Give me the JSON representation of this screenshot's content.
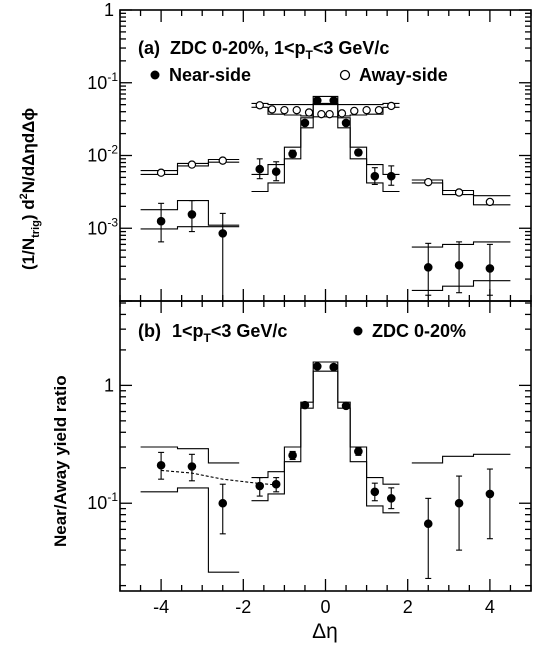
{
  "chart_data": [
    {
      "type": "scatter",
      "panel_label": "(a)",
      "title": "ZDC 0-20%, 1<p",
      "title_sub": "T",
      "title_tail": "<3 GeV/c",
      "ylabel_parts": {
        "a": "(1/N",
        "sub": "trig",
        "b": ") d",
        "sup": "2",
        "c": "N/dΔηdΔϕ"
      },
      "xlim": [
        -5.0,
        5.0
      ],
      "ylim": [
        0.0001,
        1
      ],
      "yscale": "log",
      "ytick_labels": {
        "1": "1",
        "0.1": "10",
        "0.01": "10",
        "0.001": "10"
      },
      "ytick_sup": {
        "0.1": "-1",
        "0.01": "-2",
        "0.001": "-3"
      },
      "series": [
        {
          "name": "Near-side",
          "marker": "filled-circle",
          "points": [
            {
              "x": -4.0,
              "y": 0.00125,
              "lo": 0.00065,
              "hi": 0.0022
            },
            {
              "x": -3.25,
              "y": 0.00155,
              "lo": 0.0009,
              "hi": 0.0024
            },
            {
              "x": -2.5,
              "y": 0.00085,
              "lo": 0.0001,
              "hi": 0.0016
            },
            {
              "x": -1.6,
              "y": 0.0065,
              "lo": 0.0048,
              "hi": 0.009
            },
            {
              "x": -1.2,
              "y": 0.006,
              "lo": 0.0045,
              "hi": 0.0082
            },
            {
              "x": -0.8,
              "y": 0.0105,
              "lo": 0.0095,
              "hi": 0.0118
            },
            {
              "x": -0.5,
              "y": 0.028,
              "lo": 0.026,
              "hi": 0.03
            },
            {
              "x": -0.2,
              "y": 0.057,
              "lo": 0.055,
              "hi": 0.059
            },
            {
              "x": 0.2,
              "y": 0.057,
              "lo": 0.055,
              "hi": 0.059
            },
            {
              "x": 0.5,
              "y": 0.028,
              "lo": 0.026,
              "hi": 0.03
            },
            {
              "x": 0.8,
              "y": 0.011,
              "lo": 0.01,
              "hi": 0.012
            },
            {
              "x": 1.2,
              "y": 0.0052,
              "lo": 0.004,
              "hi": 0.0068
            },
            {
              "x": 1.6,
              "y": 0.0052,
              "lo": 0.0039,
              "hi": 0.0072
            },
            {
              "x": 2.5,
              "y": 0.00029,
              "lo": 0.00012,
              "hi": 0.00062
            },
            {
              "x": 3.25,
              "y": 0.00031,
              "lo": 0.00013,
              "hi": 0.00065
            },
            {
              "x": 4.0,
              "y": 0.00028,
              "lo": 0.00012,
              "hi": 0.0006
            }
          ]
        },
        {
          "name": "Away-side",
          "marker": "open-circle",
          "points": [
            {
              "x": -4.0,
              "y": 0.0058
            },
            {
              "x": -3.25,
              "y": 0.0075
            },
            {
              "x": -2.5,
              "y": 0.0085
            },
            {
              "x": -1.6,
              "y": 0.049
            },
            {
              "x": -1.3,
              "y": 0.043
            },
            {
              "x": -1.0,
              "y": 0.042
            },
            {
              "x": -0.7,
              "y": 0.042
            },
            {
              "x": -0.4,
              "y": 0.039
            },
            {
              "x": -0.1,
              "y": 0.037
            },
            {
              "x": 0.1,
              "y": 0.037
            },
            {
              "x": 0.4,
              "y": 0.038
            },
            {
              "x": 0.7,
              "y": 0.041
            },
            {
              "x": 1.0,
              "y": 0.042
            },
            {
              "x": 1.3,
              "y": 0.042
            },
            {
              "x": 1.6,
              "y": 0.048
            },
            {
              "x": 2.5,
              "y": 0.0043
            },
            {
              "x": 3.25,
              "y": 0.0031
            },
            {
              "x": 4.0,
              "y": 0.0023
            }
          ]
        }
      ],
      "systematic_bands": [
        {
          "bins": [
            [
              -4.5,
              -3.6
            ],
            [
              -3.6,
              -2.85
            ],
            [
              -2.85,
              -2.1
            ]
          ],
          "values": [
            0.0062,
            0.0078,
            0.0088
          ]
        },
        {
          "bins": [
            [
              -4.5,
              -3.6
            ],
            [
              -3.6,
              -2.85
            ],
            [
              -2.85,
              -2.1
            ]
          ],
          "values": [
            0.0055,
            0.0072,
            0.0081
          ]
        },
        {
          "bins": [
            [
              -4.5,
              -3.6
            ],
            [
              -3.6,
              -2.85
            ],
            [
              -2.85,
              -2.1
            ]
          ],
          "values": [
            0.0018,
            0.0024,
            0.0011
          ]
        },
        {
          "bins": [
            [
              -4.5,
              -3.6
            ],
            [
              -3.6,
              -2.85
            ],
            [
              -2.85,
              -2.1
            ]
          ],
          "values": [
            0.00098,
            0.00105,
            0.00105
          ]
        },
        {
          "bins": [
            [
              -1.8,
              -1.4
            ],
            [
              -1.4,
              -1.0
            ],
            [
              -1.0,
              -0.6
            ],
            [
              -0.6,
              -0.3
            ],
            [
              -0.3,
              0.3
            ],
            [
              0.3,
              0.6
            ],
            [
              0.6,
              1.0
            ],
            [
              1.0,
              1.4
            ],
            [
              1.4,
              1.8
            ]
          ],
          "values": [
            0.052,
            0.05,
            0.05,
            0.05,
            0.052,
            0.05,
            0.05,
            0.05,
            0.052
          ]
        },
        {
          "bins": [
            [
              -1.8,
              -1.4
            ],
            [
              -1.4,
              -1.0
            ],
            [
              -1.0,
              -0.6
            ],
            [
              -0.6,
              -0.3
            ],
            [
              -0.3,
              0.3
            ],
            [
              0.3,
              0.6
            ],
            [
              0.6,
              1.0
            ],
            [
              1.0,
              1.4
            ],
            [
              1.4,
              1.8
            ]
          ],
          "values": [
            0.046,
            0.037,
            0.036,
            0.035,
            0.034,
            0.035,
            0.036,
            0.037,
            0.046
          ]
        },
        {
          "bins": [
            [
              -1.8,
              -1.4
            ],
            [
              -1.4,
              -1.0
            ],
            [
              -1.0,
              -0.6
            ],
            [
              -0.6,
              -0.3
            ],
            [
              -0.3,
              0.3
            ],
            [
              0.3,
              0.6
            ],
            [
              0.6,
              1.0
            ],
            [
              1.0,
              1.4
            ],
            [
              1.4,
              1.8
            ]
          ],
          "values": [
            0.0055,
            0.0075,
            0.013,
            0.033,
            0.065,
            0.033,
            0.013,
            0.0075,
            0.0055
          ]
        },
        {
          "bins": [
            [
              -1.8,
              -1.4
            ],
            [
              -1.4,
              -1.0
            ],
            [
              -1.0,
              -0.6
            ],
            [
              -0.6,
              -0.3
            ],
            [
              -0.3,
              0.3
            ],
            [
              0.3,
              0.6
            ],
            [
              0.6,
              1.0
            ],
            [
              1.0,
              1.4
            ],
            [
              1.4,
              1.8
            ]
          ],
          "values": [
            0.0032,
            0.0042,
            0.009,
            0.024,
            0.05,
            0.024,
            0.009,
            0.0042,
            0.0032
          ]
        },
        {
          "bins": [
            [
              2.1,
              2.85
            ],
            [
              2.85,
              3.6
            ],
            [
              3.6,
              4.5
            ]
          ],
          "values": [
            0.0046,
            0.0033,
            0.0028
          ]
        },
        {
          "bins": [
            [
              2.1,
              2.85
            ],
            [
              2.85,
              3.6
            ],
            [
              3.6,
              4.5
            ]
          ],
          "values": [
            0.0042,
            0.0029,
            0.0021
          ]
        },
        {
          "bins": [
            [
              2.1,
              2.85
            ],
            [
              2.85,
              3.6
            ],
            [
              3.6,
              4.5
            ]
          ],
          "values": [
            0.00055,
            0.0006,
            0.00065
          ]
        },
        {
          "bins": [
            [
              2.1,
              2.85
            ],
            [
              2.85,
              3.6
            ],
            [
              3.6,
              4.5
            ]
          ],
          "values": [
            0.00014,
            0.00016,
            0.00019
          ]
        }
      ]
    },
    {
      "type": "scatter",
      "panel_label": "(b)",
      "title": "1<p",
      "title_sub": "T",
      "title_tail": "<3 GeV/c",
      "legend": "ZDC 0-20%",
      "ylabel": "Near/Away yield ratio",
      "xlabel": "Δη",
      "xlim": [
        -5.0,
        5.0
      ],
      "xticks": [
        -4,
        -2,
        0,
        2,
        4
      ],
      "ylim": [
        0.018,
        5.2
      ],
      "yscale": "log",
      "ytick_labels": {
        "1": "1",
        "0.1": "10"
      },
      "ytick_sup": {
        "0.1": "-1"
      },
      "series": [
        {
          "name": "ZDC 0-20%",
          "marker": "filled-circle",
          "points": [
            {
              "x": -4.0,
              "y": 0.21,
              "lo": 0.16,
              "hi": 0.27
            },
            {
              "x": -3.25,
              "y": 0.205,
              "lo": 0.155,
              "hi": 0.26
            },
            {
              "x": -2.5,
              "y": 0.1,
              "lo": 0.055,
              "hi": 0.145
            },
            {
              "x": -1.6,
              "y": 0.14,
              "lo": 0.115,
              "hi": 0.165
            },
            {
              "x": -1.2,
              "y": 0.145,
              "lo": 0.125,
              "hi": 0.165
            },
            {
              "x": -0.8,
              "y": 0.255,
              "lo": 0.235,
              "hi": 0.275
            },
            {
              "x": -0.5,
              "y": 0.68,
              "lo": 0.66,
              "hi": 0.7
            },
            {
              "x": -0.2,
              "y": 1.45,
              "lo": 1.42,
              "hi": 1.48
            },
            {
              "x": 0.2,
              "y": 1.43,
              "lo": 1.4,
              "hi": 1.46
            },
            {
              "x": 0.5,
              "y": 0.67,
              "lo": 0.65,
              "hi": 0.69
            },
            {
              "x": 0.8,
              "y": 0.275,
              "lo": 0.255,
              "hi": 0.295
            },
            {
              "x": 1.2,
              "y": 0.125,
              "lo": 0.105,
              "hi": 0.148
            },
            {
              "x": 1.6,
              "y": 0.11,
              "lo": 0.09,
              "hi": 0.135
            },
            {
              "x": 2.5,
              "y": 0.067,
              "lo": 0.023,
              "hi": 0.11
            },
            {
              "x": 3.25,
              "y": 0.1,
              "lo": 0.04,
              "hi": 0.17
            },
            {
              "x": 4.0,
              "y": 0.12,
              "lo": 0.05,
              "hi": 0.195
            }
          ]
        }
      ],
      "dashed_fit": [
        [
          -4.0,
          0.19
        ],
        [
          -3.25,
          0.18
        ],
        [
          -2.5,
          0.16
        ],
        [
          -1.6,
          0.147
        ],
        [
          -1.2,
          0.143
        ]
      ],
      "systematic_bands": [
        {
          "bins": [
            [
              -4.5,
              -3.6
            ],
            [
              -3.6,
              -2.85
            ],
            [
              -2.85,
              -2.1
            ]
          ],
          "values": [
            0.3,
            0.29,
            0.22
          ]
        },
        {
          "bins": [
            [
              -4.5,
              -3.6
            ],
            [
              -3.6,
              -2.85
            ],
            [
              -2.85,
              -2.1
            ]
          ],
          "values": [
            0.125,
            0.135,
            0.026
          ]
        },
        {
          "bins": [
            [
              -1.8,
              -1.4
            ],
            [
              -1.4,
              -1.0
            ],
            [
              -1.0,
              -0.6
            ],
            [
              -0.6,
              -0.3
            ],
            [
              -0.3,
              0.3
            ],
            [
              0.3,
              0.6
            ],
            [
              0.6,
              1.0
            ],
            [
              1.0,
              1.4
            ],
            [
              1.4,
              1.8
            ]
          ],
          "values": [
            0.165,
            0.185,
            0.3,
            0.72,
            1.58,
            0.72,
            0.3,
            0.165,
            0.145
          ]
        },
        {
          "bins": [
            [
              -1.8,
              -1.4
            ],
            [
              -1.4,
              -1.0
            ],
            [
              -1.0,
              -0.6
            ],
            [
              -0.6,
              -0.3
            ],
            [
              -0.3,
              0.3
            ],
            [
              0.3,
              0.6
            ],
            [
              0.6,
              1.0
            ],
            [
              1.0,
              1.4
            ],
            [
              1.4,
              1.8
            ]
          ],
          "values": [
            0.105,
            0.12,
            0.225,
            0.64,
            1.32,
            0.64,
            0.225,
            0.095,
            0.083
          ]
        },
        {
          "bins": [
            [
              2.1,
              2.85
            ],
            [
              2.85,
              3.6
            ],
            [
              3.6,
              4.5
            ]
          ],
          "values": [
            0.22,
            0.25,
            0.26
          ]
        }
      ]
    }
  ]
}
